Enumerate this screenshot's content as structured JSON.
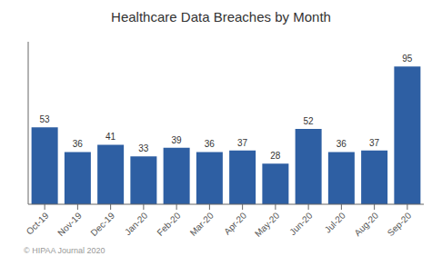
{
  "chart_data": {
    "type": "bar",
    "title": "Healthcare Data Breaches by Month",
    "categories": [
      "Oct-19",
      "Nov-19",
      "Dec-19",
      "Jan-20",
      "Feb-20",
      "Mar-20",
      "Apr-20",
      "May-20",
      "Jun-20",
      "Jul-20",
      "Aug-20",
      "Sep-20"
    ],
    "values": [
      53,
      36,
      41,
      33,
      39,
      36,
      37,
      28,
      52,
      36,
      37,
      95
    ],
    "color": "#2E5FA3",
    "ylim": [
      0,
      112
    ],
    "data_labels": true,
    "tick_labels": "x",
    "grid": false,
    "annotations": [
      "© HIPAA Journal 2020"
    ]
  }
}
